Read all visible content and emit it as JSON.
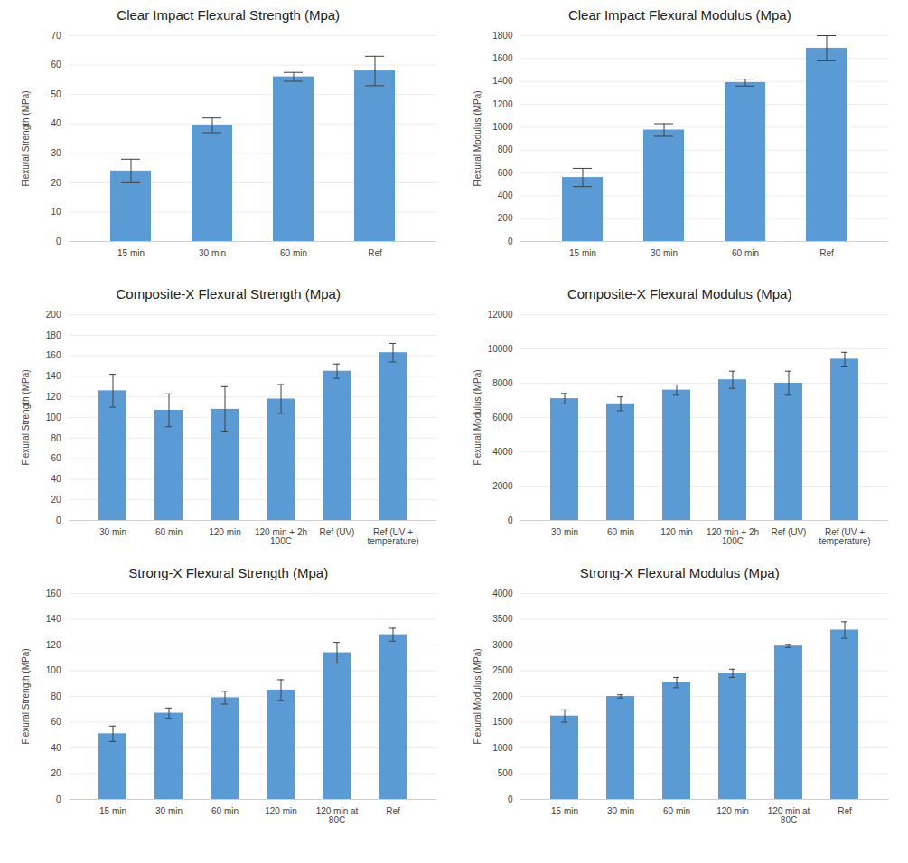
{
  "chart_data": [
    {
      "type": "bar",
      "title": "Clear Impact Flexural Strength (Mpa)",
      "ylabel": "Flexural Strength (MPa)",
      "categories": [
        "15 min",
        "30 min",
        "60 min",
        "Ref"
      ],
      "values": [
        24,
        39.5,
        56,
        58
      ],
      "errors": [
        4,
        2.5,
        1.5,
        5
      ],
      "color": "#5b9bd5",
      "ylim": [
        0,
        70
      ],
      "yticks": [
        0,
        10,
        20,
        30,
        40,
        50,
        60,
        70
      ],
      "grid": true
    },
    {
      "type": "bar",
      "title": "Clear Impact Flexural Modulus (Mpa)",
      "ylabel": "Flexural Modulus (MPa)",
      "categories": [
        "15 min",
        "30 min",
        "60 min",
        "Ref"
      ],
      "values": [
        560,
        975,
        1390,
        1690
      ],
      "errors": [
        80,
        55,
        30,
        110
      ],
      "color": "#5b9bd5",
      "ylim": [
        0,
        1800
      ],
      "yticks": [
        0,
        200,
        400,
        600,
        800,
        1000,
        1200,
        1400,
        1600,
        1800
      ],
      "grid": true
    },
    {
      "type": "bar",
      "title": "Composite-X Flexural Strength (Mpa)",
      "ylabel": "Flexural Strength (MPa)",
      "categories": [
        "30 min",
        "60 min",
        "120 min",
        "120 min + 2h\n100C",
        "Ref (UV)",
        "Ref (UV +\ntemperature)"
      ],
      "values": [
        126,
        107,
        108,
        118,
        145,
        163
      ],
      "errors": [
        16,
        16,
        22,
        14,
        7,
        9
      ],
      "color": "#5b9bd5",
      "ylim": [
        0,
        200
      ],
      "yticks": [
        0,
        20,
        40,
        60,
        80,
        100,
        120,
        140,
        160,
        180,
        200
      ],
      "grid": true
    },
    {
      "type": "bar",
      "title": "Composite-X Flexural Modulus (Mpa)",
      "ylabel": "Flexural Modulus (MPa)",
      "categories": [
        "30 min",
        "60 min",
        "120 min",
        "120 min + 2h\n100C",
        "Ref (UV)",
        "Ref (UV +\ntemperature)"
      ],
      "values": [
        7100,
        6800,
        7600,
        8200,
        8000,
        9400
      ],
      "errors": [
        300,
        400,
        300,
        500,
        700,
        400
      ],
      "color": "#5b9bd5",
      "ylim": [
        0,
        12000
      ],
      "yticks": [
        0,
        2000,
        4000,
        6000,
        8000,
        10000,
        12000
      ],
      "grid": true
    },
    {
      "type": "bar",
      "title": "Strong-X Flexural Strength (Mpa)",
      "ylabel": "Flexural Strength (MPa)",
      "categories": [
        "15 min",
        "30 min",
        "60 min",
        "120 min",
        "120 min at\n80C",
        "Ref"
      ],
      "values": [
        51,
        67,
        79,
        85,
        114,
        128
      ],
      "errors": [
        6,
        4,
        5,
        8,
        8,
        5
      ],
      "color": "#5b9bd5",
      "ylim": [
        0,
        160
      ],
      "yticks": [
        0,
        20,
        40,
        60,
        80,
        100,
        120,
        140,
        160
      ],
      "grid": true
    },
    {
      "type": "bar",
      "title": "Strong-X Flexural Modulus (Mpa)",
      "ylabel": "Flexural Modulus (MPa)",
      "categories": [
        "15 min",
        "30 min",
        "60 min",
        "120 min",
        "120 min at\n80C",
        "Ref"
      ],
      "values": [
        1620,
        2000,
        2270,
        2450,
        2980,
        3290
      ],
      "errors": [
        120,
        30,
        100,
        80,
        30,
        160
      ],
      "color": "#5b9bd5",
      "ylim": [
        0,
        4000
      ],
      "yticks": [
        0,
        500,
        1000,
        1500,
        2000,
        2500,
        3000,
        3500,
        4000
      ],
      "grid": true
    }
  ]
}
